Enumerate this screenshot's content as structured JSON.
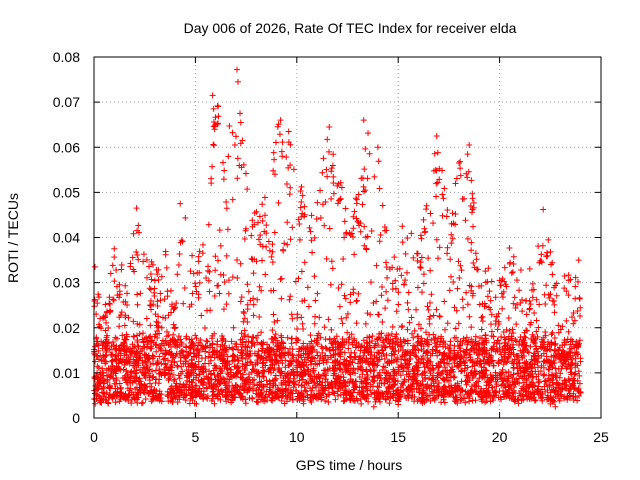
{
  "chart_data": {
    "type": "scatter",
    "title": "Day 006 of 2026, Rate Of TEC Index for receiver elda",
    "xlabel": "GPS time / hours",
    "ylabel": "ROTI / TECUs",
    "xlim": [
      0,
      25
    ],
    "ylim": [
      0,
      0.08
    ],
    "xticks": [
      "0",
      "5",
      "10",
      "15",
      "20",
      "25"
    ],
    "yticks": [
      "0",
      "0.01",
      "0.02",
      "0.03",
      "0.04",
      "0.05",
      "0.06",
      "0.07",
      "0.08"
    ],
    "grid": true,
    "marker": "plus",
    "color": "#ff0000",
    "envelope_hours": [
      0,
      0.5,
      1,
      1.5,
      2,
      2.5,
      3,
      3.5,
      4,
      4.5,
      5,
      5.5,
      6,
      6.5,
      7,
      7.5,
      8,
      8.5,
      9,
      9.5,
      10,
      10.5,
      11,
      11.5,
      12,
      12.5,
      13,
      13.5,
      14,
      14.5,
      15,
      15.5,
      16,
      16.5,
      17,
      17.5,
      18,
      18.5,
      19,
      19.5,
      20,
      20.5,
      21,
      21.5,
      22,
      22.5,
      23,
      23.5,
      24
    ],
    "envelope_upper": [
      0.034,
      0.025,
      0.037,
      0.033,
      0.046,
      0.04,
      0.033,
      0.038,
      0.03,
      0.047,
      0.035,
      0.05,
      0.072,
      0.06,
      0.077,
      0.055,
      0.048,
      0.05,
      0.066,
      0.063,
      0.058,
      0.045,
      0.052,
      0.064,
      0.058,
      0.045,
      0.05,
      0.066,
      0.06,
      0.04,
      0.038,
      0.043,
      0.037,
      0.055,
      0.063,
      0.045,
      0.057,
      0.061,
      0.032,
      0.035,
      0.03,
      0.038,
      0.035,
      0.034,
      0.046,
      0.038,
      0.031,
      0.033,
      0.035
    ],
    "peaks": [
      {
        "x": 7.05,
        "y": 0.0772
      },
      {
        "x": 7.1,
        "y": 0.0745
      },
      {
        "x": 5.85,
        "y": 0.0715
      },
      {
        "x": 5.9,
        "y": 0.0685
      },
      {
        "x": 7.2,
        "y": 0.0675
      },
      {
        "x": 9.2,
        "y": 0.066
      },
      {
        "x": 13.3,
        "y": 0.066
      },
      {
        "x": 11.6,
        "y": 0.0645
      },
      {
        "x": 5.95,
        "y": 0.064
      },
      {
        "x": 9.6,
        "y": 0.0635
      },
      {
        "x": 16.9,
        "y": 0.0625
      },
      {
        "x": 18.5,
        "y": 0.0605
      },
      {
        "x": 14.0,
        "y": 0.06
      },
      {
        "x": 18.0,
        "y": 0.0565
      },
      {
        "x": 6.95,
        "y": 0.0605
      },
      {
        "x": 2.1,
        "y": 0.0465
      },
      {
        "x": 4.25,
        "y": 0.0475
      },
      {
        "x": 22.15,
        "y": 0.0462
      },
      {
        "x": 0.05,
        "y": 0.0335
      },
      {
        "x": 1.0,
        "y": 0.0375
      },
      {
        "x": 15.2,
        "y": 0.0425
      },
      {
        "x": 23.9,
        "y": 0.035
      },
      {
        "x": 20.0,
        "y": 0.0305
      },
      {
        "x": 13.8,
        "y": 0.0025
      },
      {
        "x": 22.75,
        "y": 0.0025
      },
      {
        "x": 15.0,
        "y": 0.003
      }
    ],
    "baseline_median": 0.011,
    "baseline_low": 0.004
  }
}
